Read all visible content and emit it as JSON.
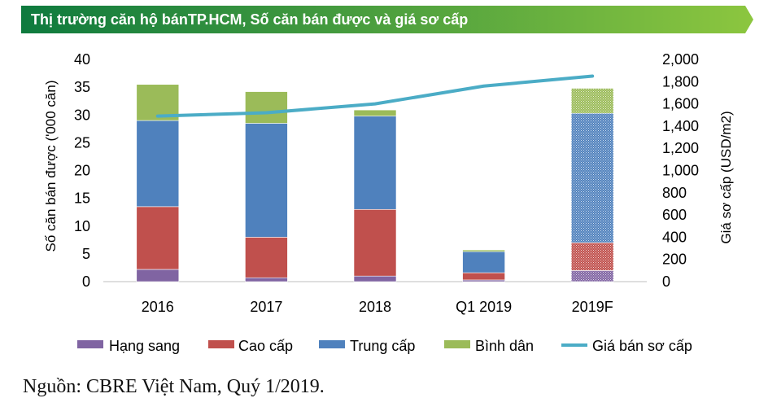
{
  "banner": {
    "title": "Thị trường căn hộ bánTP.HCM, Số căn bán được và giá sơ cấp"
  },
  "source_note": "Nguồn: CBRE Việt Nam, Quý 1/2019.",
  "colors": {
    "banner_start": "#0e7a3e",
    "banner_end": "#8cc63f",
    "hang_sang": "#8064a2",
    "cao_cap": "#c0504d",
    "trung_cap": "#4f81bd",
    "binh_dan": "#9bbb59",
    "price_line": "#4bacc6"
  },
  "chart_data": {
    "type": "bar",
    "stacked": true,
    "title": "Thị trường căn hộ bánTP.HCM, Số căn bán được và giá sơ cấp",
    "categories": [
      "2016",
      "2017",
      "2018",
      "Q1 2019",
      "2019F"
    ],
    "forecast_category": "2019F",
    "ylabel": "Số căn bán được  ('000 căn)",
    "ylim": [
      0,
      40
    ],
    "yticks": [
      "0",
      "5",
      "10",
      "15",
      "20",
      "25",
      "30",
      "35",
      "40"
    ],
    "y2label": "Giá sơ cấp (USD/m2)",
    "y2lim": [
      0,
      2000
    ],
    "y2ticks": [
      "0",
      "200",
      "400",
      "600",
      "800",
      "1,000",
      "1,200",
      "1,400",
      "1,600",
      "1,800",
      "2,000"
    ],
    "series": [
      {
        "name": "Hạng sang",
        "key": "hang_sang",
        "values": [
          2.2,
          0.7,
          1.0,
          0.3,
          2.0
        ]
      },
      {
        "name": "Cao cấp",
        "key": "cao_cap",
        "values": [
          11.3,
          7.3,
          12.0,
          1.3,
          5.0
        ]
      },
      {
        "name": "Trung cấp",
        "key": "trung_cap",
        "values": [
          15.5,
          20.5,
          16.8,
          3.8,
          23.3
        ]
      },
      {
        "name": "Bình dân",
        "key": "binh_dan",
        "values": [
          6.5,
          5.7,
          1.1,
          0.3,
          4.5
        ]
      }
    ],
    "line_series": {
      "name": "Giá bán sơ cấp",
      "key": "price_line",
      "values": [
        1490,
        1520,
        1600,
        1760,
        1850
      ]
    },
    "legend": "bottom"
  }
}
